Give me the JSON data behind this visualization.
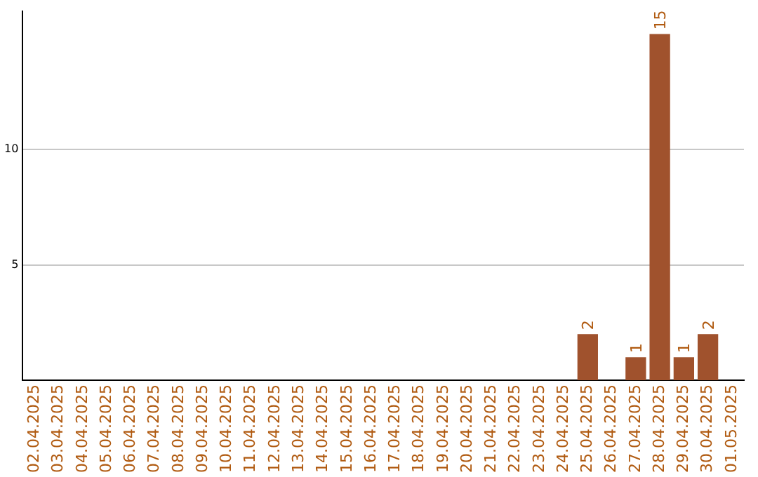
{
  "chart_data": {
    "type": "bar",
    "categories": [
      "02.04.2025",
      "03.04.2025",
      "04.04.2025",
      "05.04.2025",
      "06.04.2025",
      "07.04.2025",
      "08.04.2025",
      "09.04.2025",
      "10.04.2025",
      "11.04.2025",
      "12.04.2025",
      "13.04.2025",
      "14.04.2025",
      "15.04.2025",
      "16.04.2025",
      "17.04.2025",
      "18.04.2025",
      "19.04.2025",
      "20.04.2025",
      "21.04.2025",
      "22.04.2025",
      "23.04.2025",
      "24.04.2025",
      "25.04.2025",
      "26.04.2025",
      "27.04.2025",
      "28.04.2025",
      "29.04.2025",
      "30.04.2025",
      "01.05.2025"
    ],
    "values": [
      0,
      0,
      0,
      0,
      0,
      0,
      0,
      0,
      0,
      0,
      0,
      0,
      0,
      0,
      0,
      0,
      0,
      0,
      0,
      0,
      0,
      0,
      0,
      2,
      0,
      1,
      15,
      1,
      2,
      0
    ],
    "value_labels": [
      null,
      null,
      null,
      null,
      null,
      null,
      null,
      null,
      null,
      null,
      null,
      null,
      null,
      null,
      null,
      null,
      null,
      null,
      null,
      null,
      null,
      null,
      null,
      "2",
      null,
      "1",
      "15",
      "1",
      "2",
      null
    ],
    "color": "#a0522d",
    "ylim": [
      0,
      16
    ],
    "yticks": [
      5,
      10
    ],
    "grid": "y"
  }
}
